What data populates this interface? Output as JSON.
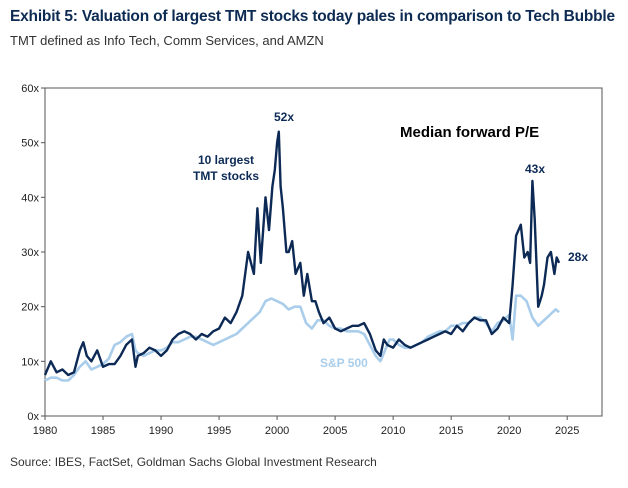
{
  "title": "Exhibit 5: Valuation of largest TMT stocks today pales in comparison to Tech Bubble",
  "subtitle": "TMT defined as Info Tech, Comm Services, and AMZN",
  "source": "Source: IBES, FactSet, Goldman Sachs Global Investment Research",
  "colors": {
    "tmt": "#0c2a55",
    "sp500": "#a9cdea",
    "axis": "#555555",
    "annotation_dark": "#0c2a55",
    "annotation_light": "#a9cdea"
  },
  "chart_data": {
    "type": "line",
    "title": "Median forward P/E",
    "xlabel": "",
    "ylabel": "",
    "xlim": [
      1980,
      2028
    ],
    "ylim": [
      0,
      60
    ],
    "x_ticks": [
      "1980",
      "1985",
      "1990",
      "1995",
      "2000",
      "2005",
      "2010",
      "2015",
      "2020",
      "2025"
    ],
    "y_ticks": [
      "0x",
      "10x",
      "20x",
      "30x",
      "40x",
      "50x",
      "60x"
    ],
    "series": [
      {
        "name": "10 largest TMT stocks",
        "label_lines": [
          "10 largest",
          "TMT stocks"
        ],
        "x": [
          1980.0,
          1980.5,
          1981.0,
          1981.5,
          1982.0,
          1982.5,
          1983.0,
          1983.3,
          1983.6,
          1984.0,
          1984.5,
          1985.0,
          1985.5,
          1986.0,
          1986.5,
          1987.0,
          1987.5,
          1987.8,
          1988.0,
          1988.5,
          1989.0,
          1989.5,
          1990.0,
          1990.5,
          1991.0,
          1991.5,
          1992.0,
          1992.5,
          1993.0,
          1993.5,
          1994.0,
          1994.5,
          1995.0,
          1995.5,
          1996.0,
          1996.5,
          1997.0,
          1997.5,
          1998.0,
          1998.3,
          1998.6,
          1999.0,
          1999.3,
          1999.6,
          1999.8,
          2000.0,
          2000.15,
          2000.3,
          2000.5,
          2000.8,
          2001.0,
          2001.3,
          2001.6,
          2002.0,
          2002.3,
          2002.6,
          2003.0,
          2003.3,
          2003.6,
          2004.0,
          2004.5,
          2005.0,
          2005.5,
          2006.0,
          2006.5,
          2007.0,
          2007.5,
          2008.0,
          2008.5,
          2008.9,
          2009.2,
          2009.5,
          2010.0,
          2010.5,
          2011.0,
          2011.5,
          2012.0,
          2012.5,
          2013.0,
          2013.5,
          2014.0,
          2014.5,
          2015.0,
          2015.5,
          2016.0,
          2016.5,
          2017.0,
          2017.5,
          2018.0,
          2018.5,
          2019.0,
          2019.5,
          2020.0,
          2020.3,
          2020.6,
          2021.0,
          2021.3,
          2021.6,
          2021.8,
          2022.0,
          2022.2,
          2022.5,
          2022.8,
          2023.0,
          2023.3,
          2023.6,
          2023.9,
          2024.1,
          2024.3
        ],
        "values": [
          7.5,
          10,
          8,
          8.5,
          7.5,
          8,
          12,
          13.5,
          11,
          10,
          12,
          9,
          9.5,
          9.5,
          11,
          13,
          14,
          9,
          11,
          11.5,
          12.5,
          12,
          11,
          12,
          14,
          15,
          15.5,
          15,
          14,
          15,
          14.5,
          15.5,
          16,
          18,
          17,
          19,
          22,
          30,
          26,
          38,
          28,
          40,
          34,
          42,
          45,
          50,
          52,
          42,
          38,
          30,
          30,
          32,
          26,
          28,
          22,
          26,
          21,
          21,
          19,
          17,
          18,
          16,
          15.5,
          16,
          16.5,
          16.5,
          17,
          15,
          12,
          11,
          14,
          13,
          12.5,
          14,
          13,
          12.5,
          13,
          13.5,
          14,
          14.5,
          15,
          15.5,
          15,
          16.5,
          15.5,
          17,
          18,
          17.5,
          17.5,
          15,
          16,
          18,
          17,
          24,
          33,
          35,
          29,
          30,
          28,
          43,
          36,
          20,
          22,
          24,
          29,
          30,
          26,
          29,
          28
        ]
      },
      {
        "name": "S&P 500",
        "x": [
          1980.0,
          1980.5,
          1981.0,
          1981.5,
          1982.0,
          1982.5,
          1983.0,
          1983.5,
          1984.0,
          1984.5,
          1985.0,
          1985.5,
          1986.0,
          1986.5,
          1987.0,
          1987.5,
          1987.8,
          1988.0,
          1988.5,
          1989.0,
          1989.5,
          1990.0,
          1990.5,
          1991.0,
          1991.5,
          1992.0,
          1992.5,
          1993.0,
          1993.5,
          1994.0,
          1994.5,
          1995.0,
          1995.5,
          1996.0,
          1996.5,
          1997.0,
          1997.5,
          1998.0,
          1998.5,
          1999.0,
          1999.5,
          2000.0,
          2000.5,
          2001.0,
          2001.5,
          2002.0,
          2002.5,
          2003.0,
          2003.5,
          2004.0,
          2004.5,
          2005.0,
          2005.5,
          2006.0,
          2006.5,
          2007.0,
          2007.5,
          2008.0,
          2008.5,
          2008.9,
          2009.3,
          2009.7,
          2010.0,
          2010.5,
          2011.0,
          2011.5,
          2012.0,
          2012.5,
          2013.0,
          2013.5,
          2014.0,
          2014.5,
          2015.0,
          2015.5,
          2016.0,
          2016.5,
          2017.0,
          2017.5,
          2018.0,
          2018.5,
          2019.0,
          2019.5,
          2020.0,
          2020.3,
          2020.6,
          2021.0,
          2021.5,
          2022.0,
          2022.5,
          2023.0,
          2023.5,
          2024.0,
          2024.3
        ],
        "values": [
          6.5,
          7,
          7,
          6.5,
          6.5,
          7.5,
          9,
          10,
          8.5,
          9,
          9.5,
          10.5,
          13,
          13.5,
          14.5,
          15,
          12,
          11.5,
          11,
          11.5,
          12,
          12,
          12.5,
          13.5,
          13.5,
          14,
          14.5,
          14.5,
          14,
          13.5,
          13,
          13.5,
          14,
          14.5,
          15,
          16,
          17,
          18,
          19,
          21,
          21.5,
          21,
          20.5,
          19.5,
          20,
          20,
          17,
          16,
          17.5,
          17.5,
          16.5,
          16,
          16,
          15.5,
          15.5,
          15.5,
          15,
          13,
          11,
          10,
          12,
          14,
          14,
          13,
          12.5,
          12.5,
          13,
          13.5,
          14.5,
          15,
          15.5,
          15.5,
          16.5,
          16.5,
          17,
          17,
          18,
          18,
          17,
          15.5,
          17,
          17.5,
          18.5,
          14,
          22,
          22,
          21,
          18,
          16.5,
          17.5,
          18.5,
          19.5,
          19
        ]
      }
    ],
    "annotations": [
      "52x",
      "43x",
      "28x",
      "S&P 500",
      "10 largest TMT stocks"
    ]
  },
  "labels": {
    "peak_2000": "52x",
    "peak_2021": "43x",
    "current": "28x",
    "sp500": "S&P 500",
    "tmt_line1": "10 largest",
    "tmt_line2": "TMT stocks"
  }
}
